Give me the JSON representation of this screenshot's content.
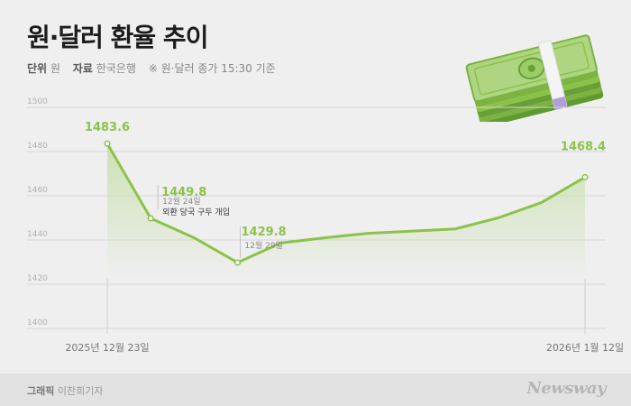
{
  "header": {
    "title": "원·달러 환율 추이",
    "unit_label": "단위",
    "unit_value": "원",
    "source_label": "자료",
    "source_value": "한국은행",
    "note": "※ 원·달러 종가 15:30 기준"
  },
  "footer": {
    "credit_label": "그래픽",
    "credit_name": "이찬희기자",
    "logo": "Newsway"
  },
  "chart_data": {
    "type": "area",
    "ylim": [
      1400,
      1500
    ],
    "yticks": [
      "1500",
      "1480",
      "1460",
      "1440",
      "1420",
      "1400"
    ],
    "x_labels": [
      {
        "text": "2025년 12월 23일",
        "index": 0
      },
      {
        "text": "2026년 1월 12일",
        "index": 11
      }
    ],
    "values": [
      1483.6,
      1449.8,
      1441.0,
      1429.8,
      1438.7,
      1441.0,
      1443.0,
      1444.0,
      1445.0,
      1450.0,
      1457.0,
      1468.4
    ],
    "data_labels": [
      {
        "index": 0,
        "value": "1483.6"
      },
      {
        "index": 1,
        "value": "1449.8",
        "date": "12월 24일",
        "note": "외환 당국 구두 개입"
      },
      {
        "index": 3,
        "value": "1429.8",
        "date": "12월 29일"
      },
      {
        "index": 11,
        "value": "1468.4"
      }
    ],
    "line_color": "#8bc34a",
    "fill_color": "#c5dfa8",
    "grid": true
  }
}
